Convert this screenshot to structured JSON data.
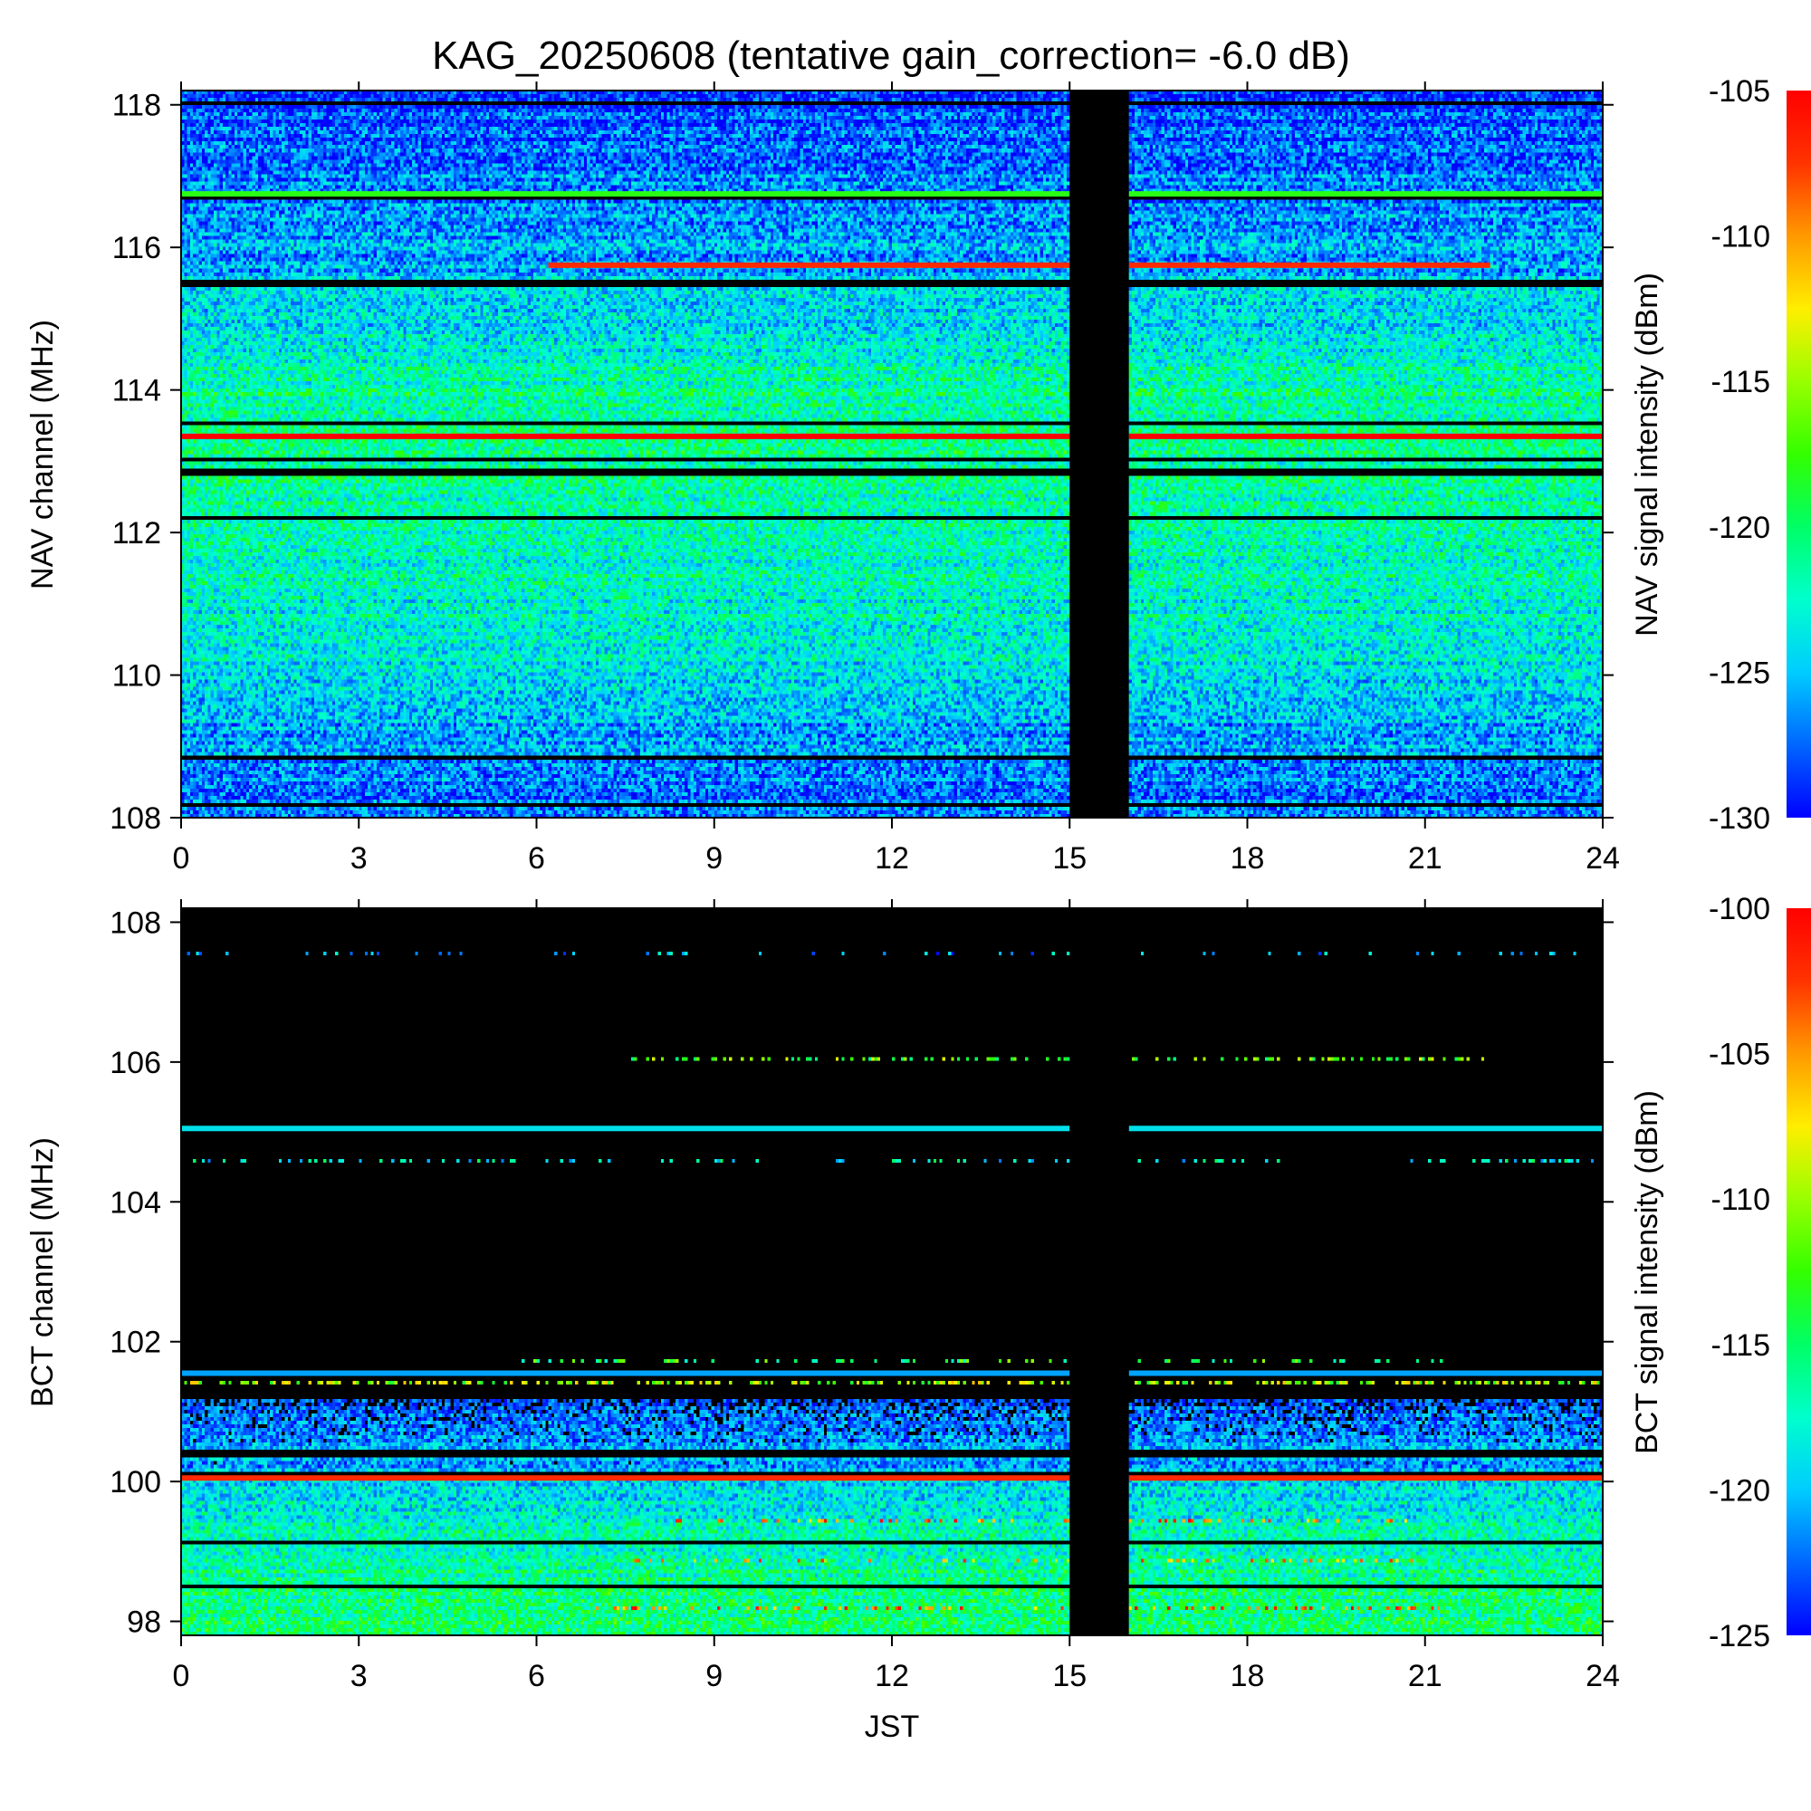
{
  "title": "KAG_20250608 (tentative gain_correction= -6.0 dB)",
  "x_label": "JST",
  "colors": {
    "off_air": "#000000",
    "colormap": [
      "#0000ff",
      "#0066ff",
      "#00ccff",
      "#00ffcc",
      "#00ff66",
      "#33ff00",
      "#99ff00",
      "#ffee00",
      "#ff9900",
      "#ff3300",
      "#ff0000"
    ]
  },
  "chart_data": [
    {
      "type": "heatmap",
      "panel": "top",
      "ylabel": "NAV channel (MHz)",
      "colorbar_label": "NAV signal intensity (dBm)",
      "x_range": [
        0,
        24
      ],
      "x_ticks": [
        0,
        3,
        6,
        9,
        12,
        15,
        18,
        21,
        24
      ],
      "y_range": [
        108,
        118.2
      ],
      "y_ticks": [
        108,
        110,
        112,
        114,
        116,
        118
      ],
      "color_range": [
        -130,
        -105
      ],
      "colorbar_ticks": [
        -105,
        -110,
        -115,
        -120,
        -125,
        -130
      ],
      "no_data_interval": [
        15,
        16
      ],
      "strong_lines": [
        {
          "freq_mhz": 113.35,
          "x_range": [
            0,
            24
          ],
          "level_dbm": -105
        },
        {
          "freq_mhz": 115.75,
          "x_range": [
            6.2,
            22.1
          ],
          "level_dbm": -107
        },
        {
          "freq_mhz": 116.75,
          "x_range": [
            0,
            24
          ],
          "level_dbm": -118
        }
      ],
      "background_profile": [
        {
          "freq_mhz": 108.0,
          "level_dbm": -128
        },
        {
          "freq_mhz": 109.0,
          "level_dbm": -126
        },
        {
          "freq_mhz": 110.0,
          "level_dbm": -124
        },
        {
          "freq_mhz": 111.0,
          "level_dbm": -122.5
        },
        {
          "freq_mhz": 112.0,
          "level_dbm": -122
        },
        {
          "freq_mhz": 113.0,
          "level_dbm": -121
        },
        {
          "freq_mhz": 114.0,
          "level_dbm": -121.5
        },
        {
          "freq_mhz": 115.0,
          "level_dbm": -124
        },
        {
          "freq_mhz": 116.0,
          "level_dbm": -126
        },
        {
          "freq_mhz": 117.0,
          "level_dbm": -127
        },
        {
          "freq_mhz": 118.2,
          "level_dbm": -129
        }
      ]
    },
    {
      "type": "heatmap",
      "panel": "bottom",
      "ylabel": "BCT channel (MHz)",
      "colorbar_label": "BCT signal intensity (dBm)",
      "x_range": [
        0,
        24
      ],
      "x_ticks": [
        0,
        3,
        6,
        9,
        12,
        15,
        18,
        21,
        24
      ],
      "y_range": [
        97.8,
        108.2
      ],
      "y_ticks": [
        98,
        100,
        102,
        104,
        106,
        108
      ],
      "color_range": [
        -125,
        -100
      ],
      "colorbar_ticks": [
        -100,
        -105,
        -110,
        -115,
        -120,
        -125
      ],
      "no_data_interval": [
        15,
        16
      ],
      "threshold_dbm": -125,
      "strong_lines": [
        {
          "freq_mhz": 105.05,
          "x_range": [
            0,
            24
          ],
          "level_dbm": -119
        },
        {
          "freq_mhz": 101.55,
          "x_range": [
            0,
            24
          ],
          "level_dbm": -121
        },
        {
          "freq_mhz": 100.05,
          "x_range": [
            0,
            24
          ],
          "level_dbm": -102
        }
      ],
      "background_profile": [
        {
          "freq_mhz": 97.8,
          "level_dbm": -115
        },
        {
          "freq_mhz": 98.5,
          "level_dbm": -116
        },
        {
          "freq_mhz": 99.5,
          "level_dbm": -118
        },
        {
          "freq_mhz": 100.0,
          "level_dbm": -120
        },
        {
          "freq_mhz": 100.5,
          "level_dbm": -121.5
        },
        {
          "freq_mhz": 101.2,
          "level_dbm": -123.5
        }
      ],
      "intermittent_bands": [
        {
          "freq_mhz": 107.6,
          "x_range": [
            0,
            24
          ],
          "density": 0.12,
          "level_dbm": -121
        },
        {
          "freq_mhz": 106.05,
          "x_range": [
            7.5,
            22
          ],
          "density": 0.35,
          "level_dbm": -112
        },
        {
          "freq_mhz": 104.6,
          "x_range": [
            0,
            24
          ],
          "density": 0.22,
          "level_dbm": -118
        },
        {
          "freq_mhz": 101.75,
          "x_range": [
            5.5,
            21.5
          ],
          "density": 0.25,
          "level_dbm": -114
        },
        {
          "freq_mhz": 101.45,
          "x_range": [
            0,
            24
          ],
          "density": 0.5,
          "level_dbm": -110
        },
        {
          "freq_mhz": 99.45,
          "x_range": [
            7.5,
            21
          ],
          "density": 0.2,
          "level_dbm": -104
        },
        {
          "freq_mhz": 98.9,
          "x_range": [
            7.5,
            21
          ],
          "density": 0.15,
          "level_dbm": -106
        },
        {
          "freq_mhz": 98.2,
          "x_range": [
            7,
            21.5
          ],
          "density": 0.22,
          "level_dbm": -104
        }
      ]
    }
  ]
}
